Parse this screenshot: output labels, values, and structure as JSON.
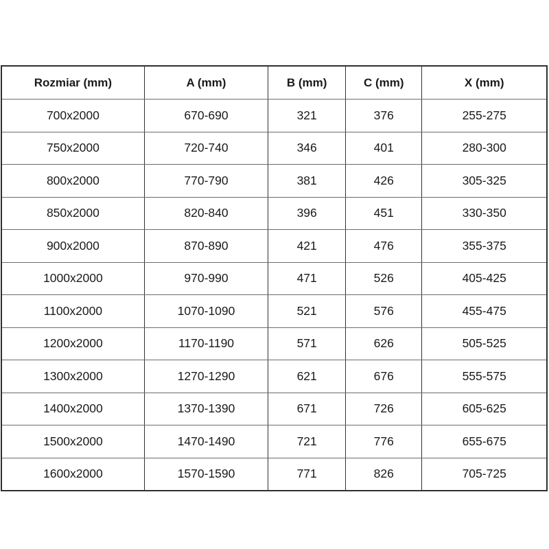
{
  "chart_data": {
    "type": "table",
    "title": "",
    "columns": [
      "Rozmiar (mm)",
      "A (mm)",
      "B (mm)",
      "C (mm)",
      "X (mm)"
    ],
    "rows": [
      [
        "700x2000",
        "670-690",
        "321",
        "376",
        "255-275"
      ],
      [
        "750x2000",
        "720-740",
        "346",
        "401",
        "280-300"
      ],
      [
        "800x2000",
        "770-790",
        "381",
        "426",
        "305-325"
      ],
      [
        "850x2000",
        "820-840",
        "396",
        "451",
        "330-350"
      ],
      [
        "900x2000",
        "870-890",
        "421",
        "476",
        "355-375"
      ],
      [
        "1000x2000",
        "970-990",
        "471",
        "526",
        "405-425"
      ],
      [
        "1100x2000",
        "1070-1090",
        "521",
        "576",
        "455-475"
      ],
      [
        "1200x2000",
        "1170-1190",
        "571",
        "626",
        "505-525"
      ],
      [
        "1300x2000",
        "1270-1290",
        "621",
        "676",
        "555-575"
      ],
      [
        "1400x2000",
        "1370-1390",
        "671",
        "726",
        "605-625"
      ],
      [
        "1500x2000",
        "1470-1490",
        "721",
        "776",
        "655-675"
      ],
      [
        "1600x2000",
        "1570-1590",
        "771",
        "826",
        "705-725"
      ]
    ]
  },
  "colors": {
    "background": "#ffffff",
    "text": "#1a1a1a",
    "border_vertical": "#2f2f2f",
    "border_horizontal": "#6b6b6b"
  }
}
